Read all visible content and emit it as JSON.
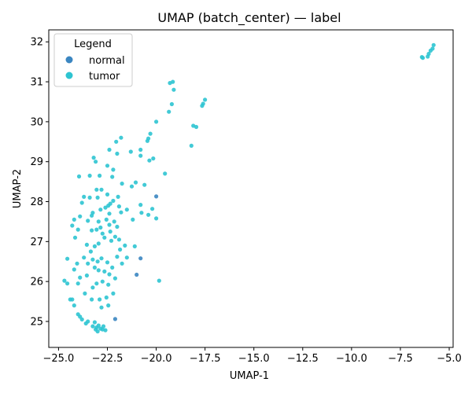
{
  "chart_data": {
    "type": "scatter",
    "title": "UMAP (batch_center) — label",
    "xlabel": "UMAP-1",
    "ylabel": "UMAP-2",
    "xlim": [
      -25.5,
      -4.8
    ],
    "ylim": [
      24.35,
      32.3
    ],
    "xticks": [
      -25.0,
      -22.5,
      -20.0,
      -17.5,
      -15.0,
      -12.5,
      -10.0,
      -7.5,
      -5.0
    ],
    "xtick_labels": [
      "−25.0",
      "−22.5",
      "−20.0",
      "−17.5",
      "−15.0",
      "−12.5",
      "−10.0",
      "−7.5",
      "−5.0"
    ],
    "yticks": [
      25,
      26,
      27,
      28,
      29,
      30,
      31,
      32
    ],
    "ytick_labels": [
      "25",
      "26",
      "27",
      "28",
      "29",
      "30",
      "31",
      "32"
    ],
    "grid": false,
    "legend": {
      "title": "Legend",
      "position": "top-left",
      "entries": [
        "normal",
        "tumor"
      ]
    },
    "series": [
      {
        "name": "normal",
        "color": "#3b86c1",
        "points": [
          [
            -20.0,
            28.13
          ],
          [
            -20.8,
            26.58
          ],
          [
            -21.0,
            26.17
          ],
          [
            -22.1,
            25.06
          ]
        ]
      },
      {
        "name": "tumor",
        "color": "#2ec4d1",
        "points": [
          [
            -6.4,
            31.62
          ],
          [
            -6.35,
            31.6
          ],
          [
            -6.1,
            31.63
          ],
          [
            -6.05,
            31.7
          ],
          [
            -5.95,
            31.78
          ],
          [
            -5.85,
            31.83
          ],
          [
            -5.8,
            31.92
          ],
          [
            -19.3,
            30.97
          ],
          [
            -19.15,
            31.0
          ],
          [
            -19.1,
            30.8
          ],
          [
            -19.2,
            30.44
          ],
          [
            -19.35,
            30.25
          ],
          [
            -17.5,
            30.55
          ],
          [
            -17.6,
            30.45
          ],
          [
            -17.65,
            30.4
          ],
          [
            -18.1,
            29.9
          ],
          [
            -17.95,
            29.87
          ],
          [
            -18.2,
            29.4
          ],
          [
            -19.55,
            28.7
          ],
          [
            -20.0,
            30.0
          ],
          [
            -20.3,
            29.7
          ],
          [
            -20.4,
            29.58
          ],
          [
            -20.45,
            29.52
          ],
          [
            -20.8,
            29.3
          ],
          [
            -20.8,
            29.15
          ],
          [
            -20.35,
            29.03
          ],
          [
            -20.15,
            29.08
          ],
          [
            -21.3,
            29.25
          ],
          [
            -21.8,
            29.6
          ],
          [
            -22.05,
            29.5
          ],
          [
            -22.4,
            29.3
          ],
          [
            -22.0,
            29.2
          ],
          [
            -22.5,
            28.9
          ],
          [
            -22.2,
            28.8
          ],
          [
            -23.2,
            29.1
          ],
          [
            -23.1,
            29.0
          ],
          [
            -22.9,
            28.65
          ],
          [
            -23.4,
            28.65
          ],
          [
            -23.95,
            28.63
          ],
          [
            -22.25,
            28.62
          ],
          [
            -21.75,
            28.45
          ],
          [
            -21.25,
            28.38
          ],
          [
            -21.05,
            28.48
          ],
          [
            -20.6,
            28.42
          ],
          [
            -23.05,
            28.3
          ],
          [
            -22.8,
            28.3
          ],
          [
            -22.5,
            28.18
          ],
          [
            -21.95,
            28.12
          ],
          [
            -23.0,
            28.1
          ],
          [
            -23.4,
            28.1
          ],
          [
            -22.2,
            28.02
          ],
          [
            -22.35,
            27.95
          ],
          [
            -22.45,
            27.9
          ],
          [
            -23.7,
            28.12
          ],
          [
            -23.8,
            27.97
          ],
          [
            -21.9,
            27.88
          ],
          [
            -21.5,
            27.8
          ],
          [
            -20.8,
            27.92
          ],
          [
            -20.2,
            27.82
          ],
          [
            -20.4,
            27.67
          ],
          [
            -20.0,
            27.58
          ],
          [
            -21.2,
            27.55
          ],
          [
            -20.75,
            27.72
          ],
          [
            -21.8,
            27.73
          ],
          [
            -22.4,
            27.7
          ],
          [
            -22.6,
            27.85
          ],
          [
            -22.85,
            27.8
          ],
          [
            -23.25,
            27.72
          ],
          [
            -23.3,
            27.65
          ],
          [
            -23.9,
            27.63
          ],
          [
            -24.2,
            27.55
          ],
          [
            -23.5,
            27.52
          ],
          [
            -22.95,
            27.5
          ],
          [
            -22.55,
            27.55
          ],
          [
            -22.4,
            27.42
          ],
          [
            -22.15,
            27.5
          ],
          [
            -22.35,
            27.25
          ],
          [
            -22.0,
            27.37
          ],
          [
            -22.85,
            27.35
          ],
          [
            -23.05,
            27.3
          ],
          [
            -23.3,
            27.28
          ],
          [
            -24.0,
            27.3
          ],
          [
            -24.3,
            27.4
          ],
          [
            -22.75,
            27.2
          ],
          [
            -22.65,
            27.1
          ],
          [
            -22.3,
            27.02
          ],
          [
            -22.1,
            27.12
          ],
          [
            -21.9,
            27.05
          ],
          [
            -21.6,
            26.9
          ],
          [
            -21.85,
            26.8
          ],
          [
            -21.1,
            26.88
          ],
          [
            -21.5,
            26.6
          ],
          [
            -21.75,
            26.45
          ],
          [
            -22.0,
            26.62
          ],
          [
            -22.25,
            26.35
          ],
          [
            -22.5,
            26.48
          ],
          [
            -22.8,
            26.58
          ],
          [
            -23.0,
            26.5
          ],
          [
            -23.25,
            26.55
          ],
          [
            -23.35,
            26.75
          ],
          [
            -23.15,
            26.88
          ],
          [
            -22.95,
            26.95
          ],
          [
            -23.55,
            26.92
          ],
          [
            -24.15,
            27.1
          ],
          [
            -23.7,
            26.6
          ],
          [
            -24.05,
            26.45
          ],
          [
            -24.55,
            26.57
          ],
          [
            -23.5,
            26.45
          ],
          [
            -23.15,
            26.35
          ],
          [
            -22.95,
            26.28
          ],
          [
            -22.65,
            26.25
          ],
          [
            -22.4,
            26.18
          ],
          [
            -22.1,
            26.08
          ],
          [
            -22.45,
            25.92
          ],
          [
            -22.75,
            26.0
          ],
          [
            -23.05,
            25.95
          ],
          [
            -23.25,
            25.85
          ],
          [
            -23.55,
            26.15
          ],
          [
            -23.9,
            26.1
          ],
          [
            -24.0,
            25.95
          ],
          [
            -24.2,
            26.3
          ],
          [
            -19.85,
            26.02
          ],
          [
            -22.2,
            25.7
          ],
          [
            -22.55,
            25.6
          ],
          [
            -22.9,
            25.55
          ],
          [
            -23.3,
            25.55
          ],
          [
            -23.65,
            25.7
          ],
          [
            -22.45,
            25.4
          ],
          [
            -22.8,
            25.35
          ],
          [
            -24.3,
            25.55
          ],
          [
            -24.2,
            25.4
          ],
          [
            -24.4,
            25.55
          ],
          [
            -24.55,
            25.95
          ],
          [
            -24.7,
            26.02
          ],
          [
            -24.0,
            25.18
          ],
          [
            -23.9,
            25.12
          ],
          [
            -23.8,
            25.05
          ],
          [
            -23.5,
            25.0
          ],
          [
            -23.6,
            24.95
          ],
          [
            -23.25,
            24.88
          ],
          [
            -23.05,
            24.85
          ],
          [
            -23.15,
            24.98
          ],
          [
            -22.95,
            24.9
          ],
          [
            -22.75,
            24.8
          ],
          [
            -22.6,
            24.78
          ],
          [
            -22.7,
            24.88
          ],
          [
            -22.85,
            24.82
          ],
          [
            -23.0,
            24.75
          ],
          [
            -23.1,
            24.8
          ]
        ]
      }
    ]
  }
}
